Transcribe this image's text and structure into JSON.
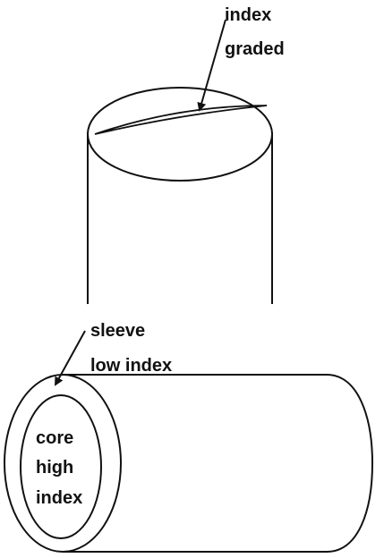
{
  "top_label": {
    "line1": "index",
    "line2": "graded"
  },
  "sleeve_label": {
    "line1": "sleeve",
    "line2": "low index"
  },
  "core_label": {
    "line1": "core",
    "line2": "high",
    "line3": "index"
  },
  "colors": {
    "stroke": "#111111",
    "background": "#ffffff"
  }
}
